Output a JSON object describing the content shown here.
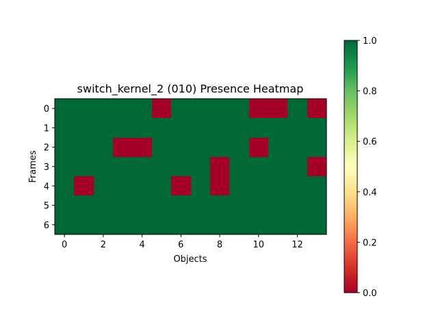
{
  "chart_data": {
    "type": "heatmap",
    "title": "switch_kernel_2 (010) Presence Heatmap",
    "xlabel": "Objects",
    "ylabel": "Frames",
    "x_ticks": [
      "0",
      "2",
      "4",
      "6",
      "8",
      "10",
      "12"
    ],
    "y_ticks": [
      "0",
      "1",
      "2",
      "3",
      "4",
      "5",
      "6"
    ],
    "colorbar_ticks": [
      "0.0",
      "0.2",
      "0.4",
      "0.6",
      "0.8",
      "1.0"
    ],
    "colormap": "RdYlGn",
    "vmin": 0.0,
    "vmax": 1.0,
    "colors": {
      "low": "#a50026",
      "high": "#006837"
    },
    "grid": false,
    "values": [
      [
        1,
        1,
        1,
        1,
        1,
        0,
        1,
        1,
        1,
        1,
        0,
        0,
        1,
        0
      ],
      [
        1,
        1,
        1,
        1,
        1,
        1,
        1,
        1,
        1,
        1,
        1,
        1,
        1,
        1
      ],
      [
        1,
        1,
        1,
        0,
        0,
        1,
        1,
        1,
        1,
        1,
        0,
        1,
        1,
        1
      ],
      [
        1,
        1,
        1,
        1,
        1,
        1,
        1,
        1,
        0,
        1,
        1,
        1,
        1,
        0
      ],
      [
        1,
        0,
        1,
        1,
        1,
        1,
        0,
        1,
        0,
        1,
        1,
        1,
        1,
        1
      ],
      [
        1,
        1,
        1,
        1,
        1,
        1,
        1,
        1,
        1,
        1,
        1,
        1,
        1,
        1
      ],
      [
        1,
        1,
        1,
        1,
        1,
        1,
        1,
        1,
        1,
        1,
        1,
        1,
        1,
        1
      ]
    ]
  }
}
